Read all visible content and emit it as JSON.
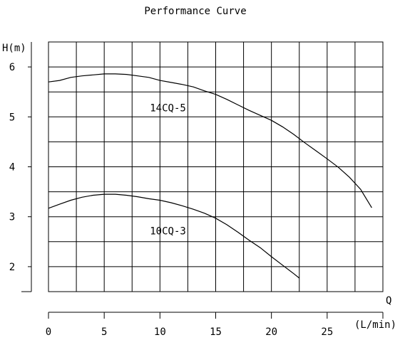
{
  "chart_data": {
    "type": "line",
    "title": "Performance Curve",
    "ylabel": "H(m)",
    "xlabel": "Q",
    "xunit": "(L/min)",
    "x_ticks": [
      0,
      5,
      10,
      15,
      20,
      25
    ],
    "y_ticks": [
      2,
      3,
      4,
      5,
      6
    ],
    "xlim": [
      0,
      30
    ],
    "ylim": [
      1.5,
      6.5
    ],
    "grid": true,
    "series": [
      {
        "name": "14CQ-5",
        "x": [
          0,
          1,
          2,
          3,
          4,
          5,
          6,
          7,
          8,
          9,
          10,
          11,
          12,
          13,
          14,
          15,
          16,
          17,
          18,
          19,
          20,
          21,
          22,
          23,
          24,
          25,
          26,
          27,
          28,
          29
        ],
        "y": [
          5.7,
          5.73,
          5.79,
          5.82,
          5.84,
          5.86,
          5.86,
          5.85,
          5.82,
          5.79,
          5.73,
          5.69,
          5.65,
          5.6,
          5.52,
          5.45,
          5.35,
          5.24,
          5.13,
          5.03,
          4.93,
          4.8,
          4.65,
          4.48,
          4.32,
          4.16,
          3.99,
          3.79,
          3.55,
          3.18
        ]
      },
      {
        "name": "10CQ-3",
        "x": [
          0,
          1,
          2,
          3,
          4,
          5,
          6,
          7,
          8,
          9,
          10,
          11,
          12,
          13,
          14,
          15,
          16,
          17,
          18,
          19,
          20,
          21,
          22,
          22.5
        ],
        "y": [
          3.17,
          3.25,
          3.33,
          3.39,
          3.43,
          3.45,
          3.45,
          3.43,
          3.4,
          3.36,
          3.33,
          3.28,
          3.22,
          3.15,
          3.07,
          2.97,
          2.84,
          2.69,
          2.53,
          2.38,
          2.2,
          2.03,
          1.86,
          1.77
        ]
      }
    ]
  }
}
